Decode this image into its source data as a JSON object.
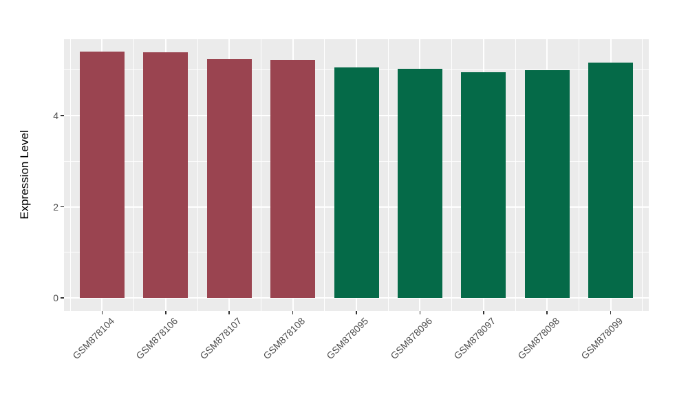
{
  "chart_data": {
    "type": "bar",
    "title": "",
    "xlabel": "",
    "ylabel": "Expression Level",
    "categories": [
      "GSM878104",
      "GSM878106",
      "GSM878107",
      "GSM878108",
      "GSM878095",
      "GSM878096",
      "GSM878097",
      "GSM878098",
      "GSM878099"
    ],
    "values": [
      5.4,
      5.39,
      5.24,
      5.22,
      5.06,
      5.03,
      4.95,
      4.99,
      5.16
    ],
    "bar_colors": [
      "#9A4450",
      "#9A4450",
      "#9A4450",
      "#9A4450",
      "#056A48",
      "#056A48",
      "#056A48",
      "#056A48",
      "#056A48"
    ],
    "groups": {
      "maroon_group": {
        "color": "#9A4450",
        "categories": [
          "GSM878104",
          "GSM878106",
          "GSM878107",
          "GSM878108"
        ]
      },
      "green_group": {
        "color": "#056A48",
        "categories": [
          "GSM878095",
          "GSM878096",
          "GSM878097",
          "GSM878098",
          "GSM878099"
        ]
      }
    },
    "yticks": [
      0,
      2,
      4
    ],
    "ytick_labels": [
      "0",
      "2",
      "4"
    ],
    "yticks_minor": [
      1,
      3,
      5
    ],
    "ylim": [
      -0.29,
      5.68
    ],
    "x_label_angle_deg": 45,
    "grid": true,
    "legend": "none",
    "panel_bg": "#EBEBEB",
    "grid_color": "#FFFFFF",
    "tick_text_color": "#4D4D4D",
    "axis_title_color": "#000000"
  }
}
